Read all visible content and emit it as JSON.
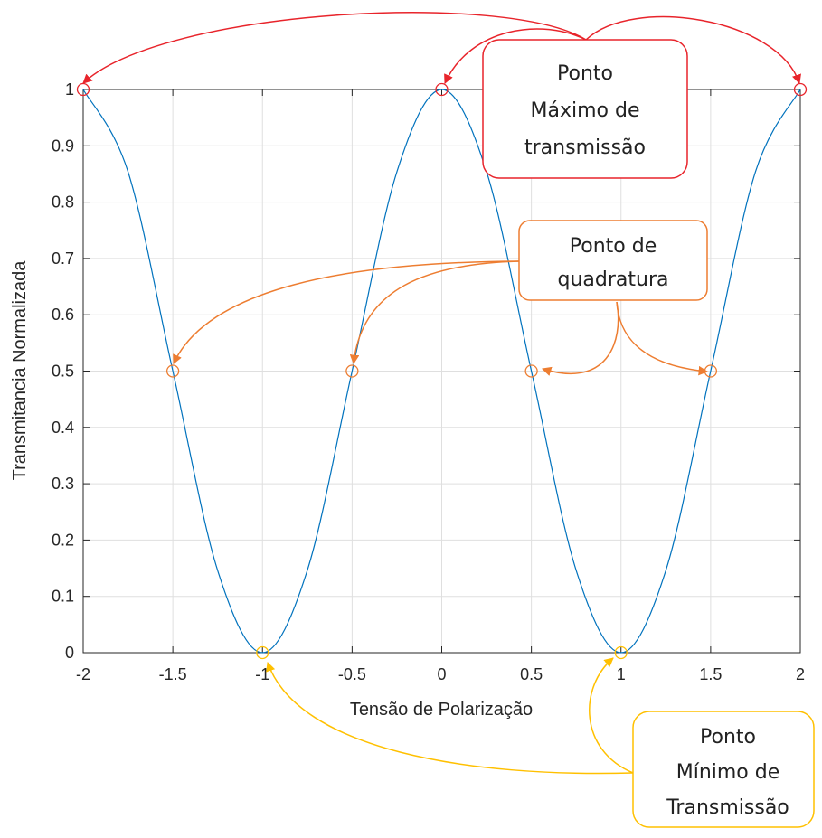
{
  "chart_data": {
    "type": "line",
    "title": "",
    "xlabel": "Tensão de Polarização",
    "ylabel": "Transmitancia Normalizada",
    "xlim": [
      -2,
      2
    ],
    "ylim": [
      0,
      1
    ],
    "grid": true,
    "x_ticks": [
      "-2",
      "-1.5",
      "-1",
      "-0.5",
      "0",
      "0.5",
      "1",
      "1.5",
      "2"
    ],
    "y_ticks": [
      "0",
      "0.1",
      "0.2",
      "0.3",
      "0.4",
      "0.5",
      "0.6",
      "0.7",
      "0.8",
      "0.9",
      "1"
    ],
    "x": [
      -2,
      -1.75,
      -1.5,
      -1.25,
      -1,
      -0.75,
      -0.5,
      -0.25,
      0,
      0.25,
      0.5,
      0.75,
      1,
      1.25,
      1.5,
      1.75,
      2
    ],
    "y": [
      1,
      0.854,
      0.5,
      0.146,
      0,
      0.146,
      0.5,
      0.854,
      1,
      0.854,
      0.5,
      0.146,
      0,
      0.146,
      0.5,
      0.854,
      1
    ],
    "series_color": "#0072BD",
    "markers": {
      "max": {
        "x": [
          -2,
          0,
          2
        ],
        "y": [
          1,
          1,
          1
        ],
        "color": "#E8242B"
      },
      "quadrature": {
        "x": [
          -1.5,
          -0.5,
          0.5,
          1.5
        ],
        "y": [
          0.5,
          0.5,
          0.5,
          0.5
        ],
        "color": "#ED7D31"
      },
      "min": {
        "x": [
          -1,
          1
        ],
        "y": [
          0,
          0
        ],
        "color": "#FFC000"
      }
    },
    "annotations": [
      {
        "id": "max",
        "lines": [
          "Ponto",
          "Máximo de",
          "transmissão"
        ],
        "color": "#E8242B"
      },
      {
        "id": "quad",
        "lines": [
          "Ponto de",
          "quadratura"
        ],
        "color": "#ED7D31"
      },
      {
        "id": "min",
        "lines": [
          "Ponto",
          "Mínimo de",
          "Transmissão"
        ],
        "color": "#FFC000"
      }
    ]
  }
}
